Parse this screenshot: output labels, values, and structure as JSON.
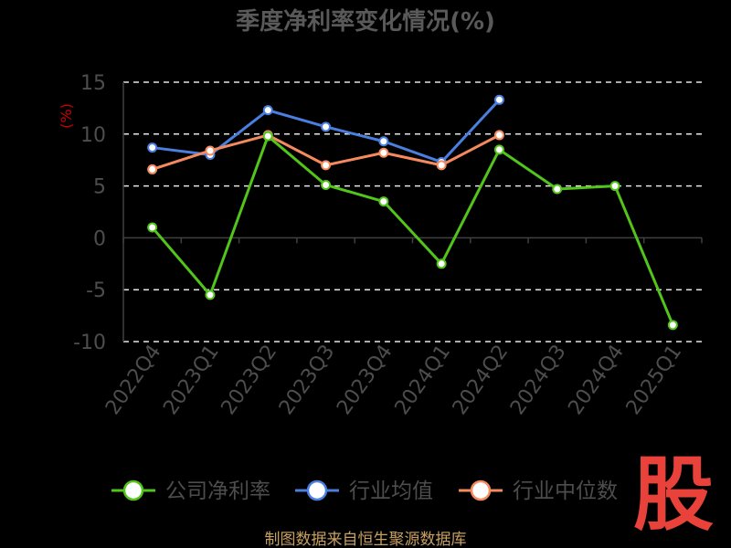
{
  "chart_data": {
    "type": "line",
    "title": "季度净利率变化情况(%)",
    "ylabel": "(%)",
    "xlabel": "",
    "categories": [
      "2022Q4",
      "2023Q1",
      "2023Q2",
      "2023Q3",
      "2023Q4",
      "2024Q1",
      "2024Q2",
      "2024Q3",
      "2024Q4",
      "2025Q1"
    ],
    "ylim": [
      -10,
      15
    ],
    "yticks": [
      "15",
      "10",
      "5",
      "0",
      "-5",
      "-10"
    ],
    "grid": "horizontal dashed",
    "legend_position": "bottom",
    "series": [
      {
        "name": "公司净利率",
        "color": "#52c41a",
        "values": [
          1.0,
          -5.5,
          9.8,
          5.1,
          3.5,
          -2.5,
          8.5,
          4.7,
          5.0,
          -8.4
        ]
      },
      {
        "name": "行业均值",
        "color": "#4a7fe0",
        "values": [
          8.7,
          8.0,
          12.3,
          10.7,
          9.3,
          7.3,
          13.3,
          null,
          null,
          null
        ]
      },
      {
        "name": "行业中位数",
        "color": "#f48a5e",
        "values": [
          6.6,
          8.4,
          9.9,
          7.0,
          8.2,
          7.0,
          9.9,
          null,
          null,
          null
        ]
      }
    ],
    "source": "制图数据来自恒生聚源数据库",
    "watermark": "股"
  },
  "colors": {
    "background": "#000000",
    "title": "#595959",
    "axis_text": "#4d4d4d",
    "ylabel": "#cc0000",
    "grid": "#e6e6e6",
    "source_text": "#c8a060",
    "watermark": "#e8423a"
  }
}
